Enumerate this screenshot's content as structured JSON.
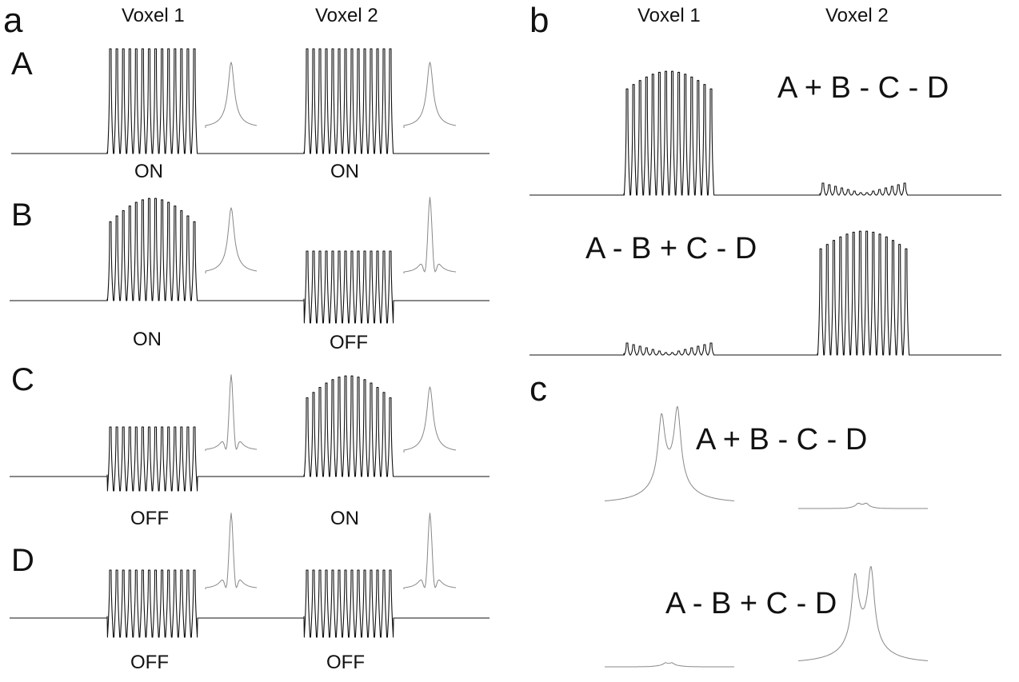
{
  "panels": {
    "a": "a",
    "b": "b",
    "c": "c"
  },
  "headers": {
    "voxel1": "Voxel 1",
    "voxel2": "Voxel 2"
  },
  "rows": [
    {
      "label": "A",
      "voxel1": "ON",
      "voxel2": "ON"
    },
    {
      "label": "B",
      "voxel1": "ON",
      "voxel2": "OFF"
    },
    {
      "label": "C",
      "voxel1": "OFF",
      "voxel2": "ON"
    },
    {
      "label": "D",
      "voxel1": "OFF",
      "voxel2": "OFF"
    }
  ],
  "combinations": {
    "sum1": "A + B - C - D",
    "sum2": "A - B + C - D"
  },
  "colors": {
    "trace": "#111111",
    "spectrum": "#888888"
  }
}
